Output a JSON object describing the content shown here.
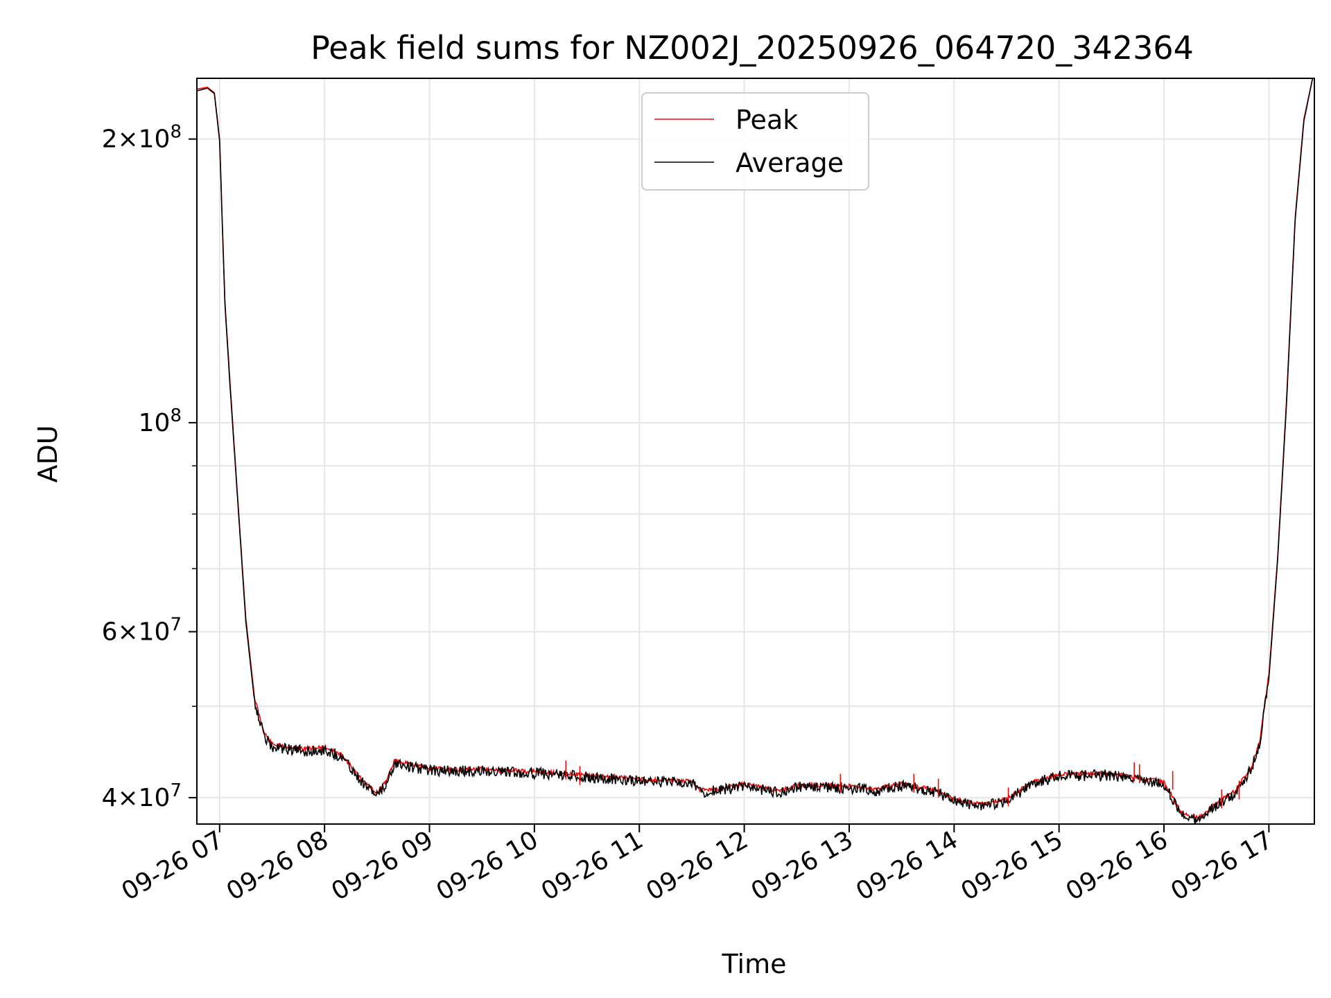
{
  "chart_data": {
    "type": "line",
    "title": "Peak field sums for NZ002J_20250926_064720_342364",
    "xlabel": "Time",
    "ylabel": "ADU",
    "yscale": "log",
    "grid": true,
    "legend_position": "upper-center",
    "x_range": [
      "2025-09-26 06:47",
      "2025-09-26 17:26"
    ],
    "y_range": [
      37500000,
      232000000
    ],
    "x_ticks": [
      "09-26 07",
      "09-26 08",
      "09-26 09",
      "09-26 10",
      "09-26 11",
      "09-26 12",
      "09-26 13",
      "09-26 14",
      "09-26 15",
      "09-26 16",
      "09-26 17"
    ],
    "y_ticks": [
      {
        "value": 40000000,
        "mantissa": "4",
        "exponent": "7"
      },
      {
        "value": 60000000,
        "mantissa": "6",
        "exponent": "7"
      },
      {
        "value": 100000000,
        "mantissa": "",
        "exponent": "8"
      },
      {
        "value": 200000000,
        "mantissa": "2",
        "exponent": "8"
      }
    ],
    "y_minor_ticks": [
      50000000,
      70000000,
      80000000,
      90000000
    ],
    "series": [
      {
        "name": "Peak",
        "color": "#ff0000",
        "points": [
          [
            "2025-09-26 06:47",
            226000000
          ],
          [
            "2025-09-26 06:53",
            227000000
          ],
          [
            "2025-09-26 06:57",
            224000000
          ],
          [
            "2025-09-26 07:00",
            200000000
          ],
          [
            "2025-09-26 07:03",
            135000000
          ],
          [
            "2025-09-26 07:06",
            110000000
          ],
          [
            "2025-09-26 07:10",
            85000000
          ],
          [
            "2025-09-26 07:15",
            62000000
          ],
          [
            "2025-09-26 07:20",
            51000000
          ],
          [
            "2025-09-26 07:25",
            47000000
          ],
          [
            "2025-09-26 07:30",
            45500000
          ],
          [
            "2025-09-26 07:40",
            45200000
          ],
          [
            "2025-09-26 07:50",
            45000000
          ],
          [
            "2025-09-26 08:00",
            45200000
          ],
          [
            "2025-09-26 08:10",
            44300000
          ],
          [
            "2025-09-26 08:20",
            42000000
          ],
          [
            "2025-09-26 08:30",
            40400000
          ],
          [
            "2025-09-26 08:35",
            41500000
          ],
          [
            "2025-09-26 08:40",
            43700000
          ],
          [
            "2025-09-26 08:45",
            43500000
          ],
          [
            "2025-09-26 08:50",
            43300000
          ],
          [
            "2025-09-26 09:00",
            42900000
          ],
          [
            "2025-09-26 09:15",
            42800000
          ],
          [
            "2025-09-26 09:30",
            42800000
          ],
          [
            "2025-09-26 10:00",
            42600000
          ],
          [
            "2025-09-26 10:30",
            42200000
          ],
          [
            "2025-09-26 11:00",
            41800000
          ],
          [
            "2025-09-26 11:30",
            41600000
          ],
          [
            "2025-09-26 11:35",
            40700000
          ],
          [
            "2025-09-26 11:45",
            40800000
          ],
          [
            "2025-09-26 12:00",
            41300000
          ],
          [
            "2025-09-26 12:20",
            40600000
          ],
          [
            "2025-09-26 12:30",
            41200000
          ],
          [
            "2025-09-26 13:00",
            41100000
          ],
          [
            "2025-09-26 13:15",
            40800000
          ],
          [
            "2025-09-26 13:30",
            41300000
          ],
          [
            "2025-09-26 13:50",
            40700000
          ],
          [
            "2025-09-26 14:00",
            39800000
          ],
          [
            "2025-09-26 14:15",
            39300000
          ],
          [
            "2025-09-26 14:30",
            39800000
          ],
          [
            "2025-09-26 14:45",
            41500000
          ],
          [
            "2025-09-26 15:00",
            42300000
          ],
          [
            "2025-09-26 15:30",
            42400000
          ],
          [
            "2025-09-26 15:45",
            41900000
          ],
          [
            "2025-09-26 16:00",
            41500000
          ],
          [
            "2025-09-26 16:10",
            38500000
          ],
          [
            "2025-09-26 16:20",
            38000000
          ],
          [
            "2025-09-26 16:30",
            39400000
          ],
          [
            "2025-09-26 16:40",
            40500000
          ],
          [
            "2025-09-26 16:50",
            43000000
          ],
          [
            "2025-09-26 16:55",
            46000000
          ],
          [
            "2025-09-26 17:00",
            54000000
          ],
          [
            "2025-09-26 17:05",
            72000000
          ],
          [
            "2025-09-26 17:10",
            105000000
          ],
          [
            "2025-09-26 17:15",
            165000000
          ],
          [
            "2025-09-26 17:20",
            210000000
          ],
          [
            "2025-09-26 17:25",
            232000000
          ]
        ],
        "spikes": [
          [
            "2025-09-26 10:18",
            43800000
          ],
          [
            "2025-09-26 10:26",
            43200000
          ],
          [
            "2025-09-26 12:55",
            42400000
          ],
          [
            "2025-09-26 13:37",
            42400000
          ],
          [
            "2025-09-26 13:51",
            41900000
          ],
          [
            "2025-09-26 14:31",
            41000000
          ],
          [
            "2025-09-26 15:43",
            43600000
          ],
          [
            "2025-09-26 15:46",
            43400000
          ],
          [
            "2025-09-26 16:05",
            42700000
          ],
          [
            "2025-09-26 16:33",
            40800000
          ],
          [
            "2025-09-26 16:43",
            41700000
          ]
        ]
      },
      {
        "name": "Average",
        "color": "#000000",
        "points": [
          [
            "2025-09-26 06:47",
            225000000
          ],
          [
            "2025-09-26 06:53",
            226500000
          ],
          [
            "2025-09-26 06:57",
            223500000
          ],
          [
            "2025-09-26 07:00",
            199000000
          ],
          [
            "2025-09-26 07:03",
            134000000
          ],
          [
            "2025-09-26 07:06",
            109000000
          ],
          [
            "2025-09-26 07:10",
            84500000
          ],
          [
            "2025-09-26 07:15",
            61500000
          ],
          [
            "2025-09-26 07:20",
            50500000
          ],
          [
            "2025-09-26 07:25",
            46500000
          ],
          [
            "2025-09-26 07:30",
            45000000
          ],
          [
            "2025-09-26 07:40",
            44800000
          ],
          [
            "2025-09-26 07:50",
            44600000
          ],
          [
            "2025-09-26 08:00",
            44800000
          ],
          [
            "2025-09-26 08:10",
            44000000
          ],
          [
            "2025-09-26 08:20",
            41700000
          ],
          [
            "2025-09-26 08:30",
            40000000
          ],
          [
            "2025-09-26 08:35",
            41100000
          ],
          [
            "2025-09-26 08:40",
            43400000
          ],
          [
            "2025-09-26 08:45",
            43200000
          ],
          [
            "2025-09-26 08:50",
            42900000
          ],
          [
            "2025-09-26 09:00",
            42600000
          ],
          [
            "2025-09-26 09:15",
            42500000
          ],
          [
            "2025-09-26 09:30",
            42500000
          ],
          [
            "2025-09-26 10:00",
            42300000
          ],
          [
            "2025-09-26 10:30",
            41900000
          ],
          [
            "2025-09-26 11:00",
            41500000
          ],
          [
            "2025-09-26 11:30",
            41300000
          ],
          [
            "2025-09-26 11:35",
            40400000
          ],
          [
            "2025-09-26 11:45",
            40500000
          ],
          [
            "2025-09-26 12:00",
            41000000
          ],
          [
            "2025-09-26 12:20",
            40300000
          ],
          [
            "2025-09-26 12:30",
            40900000
          ],
          [
            "2025-09-26 13:00",
            40800000
          ],
          [
            "2025-09-26 13:15",
            40500000
          ],
          [
            "2025-09-26 13:30",
            41000000
          ],
          [
            "2025-09-26 13:50",
            40400000
          ],
          [
            "2025-09-26 14:00",
            39500000
          ],
          [
            "2025-09-26 14:15",
            39000000
          ],
          [
            "2025-09-26 14:30",
            39500000
          ],
          [
            "2025-09-26 14:45",
            41200000
          ],
          [
            "2025-09-26 15:00",
            42000000
          ],
          [
            "2025-09-26 15:30",
            42100000
          ],
          [
            "2025-09-26 15:45",
            41600000
          ],
          [
            "2025-09-26 16:00",
            41200000
          ],
          [
            "2025-09-26 16:10",
            38200000
          ],
          [
            "2025-09-26 16:20",
            37700000
          ],
          [
            "2025-09-26 16:30",
            39100000
          ],
          [
            "2025-09-26 16:40",
            40200000
          ],
          [
            "2025-09-26 16:50",
            42700000
          ],
          [
            "2025-09-26 16:55",
            45700000
          ],
          [
            "2025-09-26 17:00",
            53500000
          ],
          [
            "2025-09-26 17:05",
            71500000
          ],
          [
            "2025-09-26 17:10",
            104000000
          ],
          [
            "2025-09-26 17:15",
            164000000
          ],
          [
            "2025-09-26 17:20",
            209000000
          ],
          [
            "2025-09-26 17:25",
            232000000
          ]
        ]
      }
    ]
  }
}
